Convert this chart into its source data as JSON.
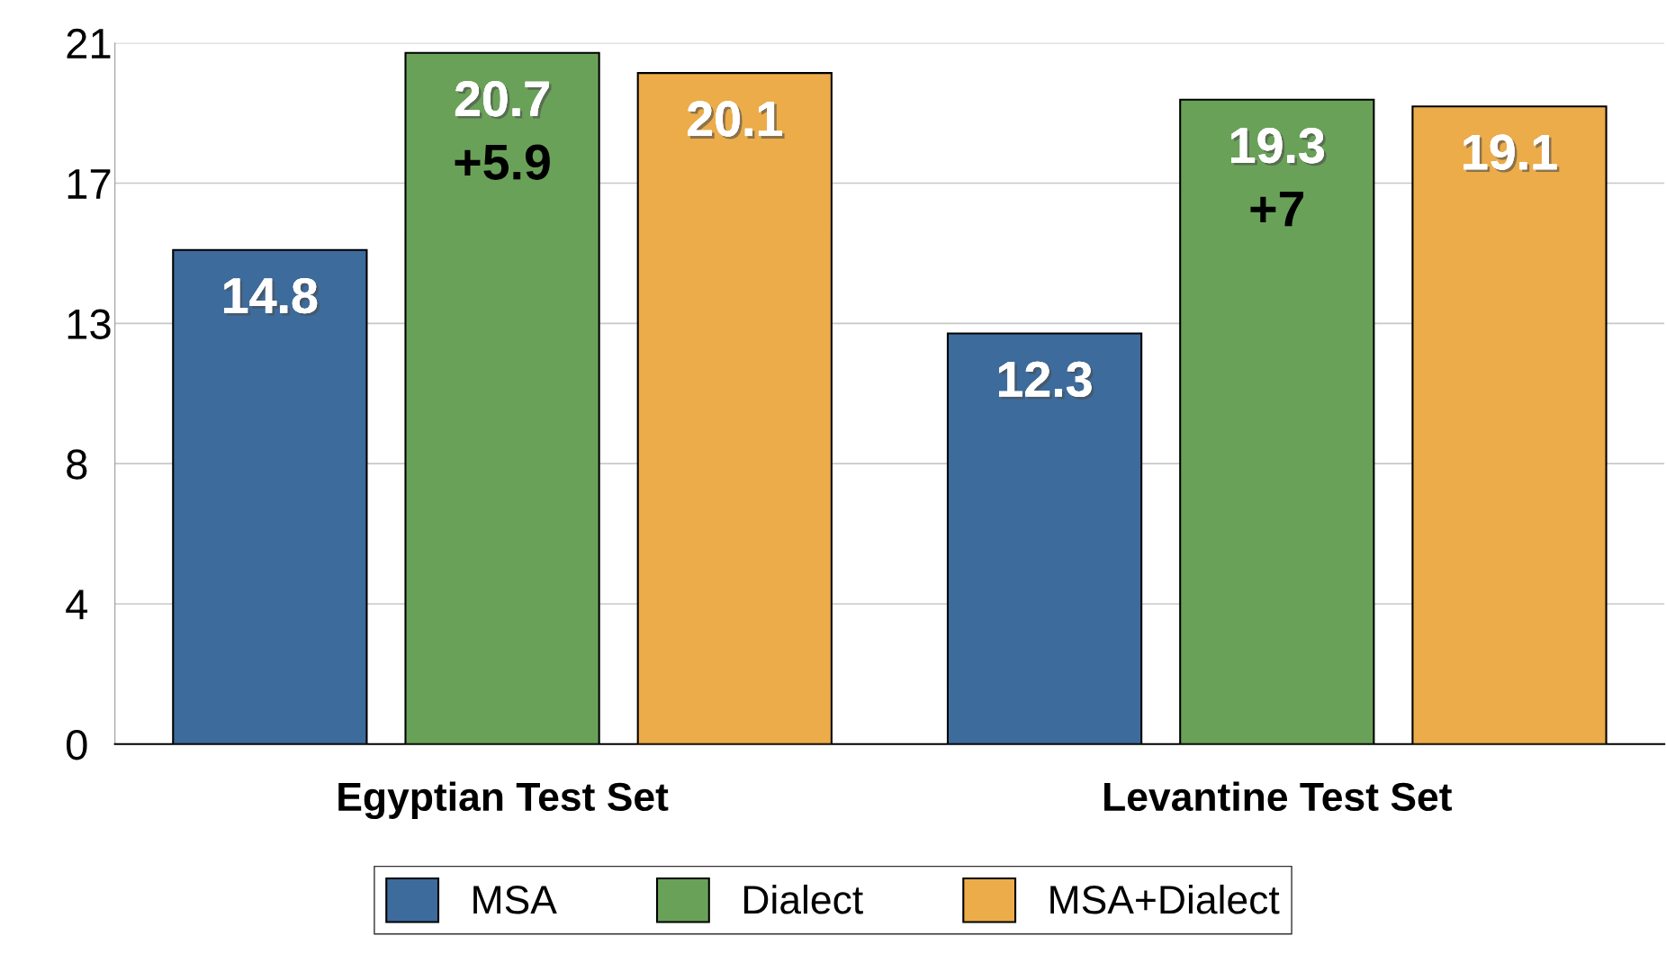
{
  "chart_data": {
    "type": "bar",
    "categories": [
      "Egyptian Test Set",
      "Levantine Test Set"
    ],
    "series": [
      {
        "name": "MSA",
        "color": "#3d6b9c",
        "values": [
          14.8,
          12.3
        ]
      },
      {
        "name": "Dialect",
        "color": "#6aa159",
        "values": [
          20.7,
          19.3
        ]
      },
      {
        "name": "MSA+Dialect",
        "color": "#ebac49",
        "values": [
          20.1,
          19.1
        ]
      }
    ],
    "ylim": [
      0,
      21
    ],
    "yticks": [
      0,
      {
        "value": 4.2,
        "label": "4"
      },
      {
        "value": 8.4,
        "label": "8"
      },
      {
        "value": 12.6,
        "label": "13"
      },
      {
        "value": 16.8,
        "label": "17"
      },
      21
    ],
    "annotations": [
      {
        "text": "+5.9",
        "x": "Egyptian Test Set",
        "y": 20.7
      },
      {
        "text": "+7",
        "x": "Levantine Test Set",
        "y": 19.3
      }
    ],
    "data_labels": true,
    "grid": "y",
    "legend": "bottom"
  }
}
